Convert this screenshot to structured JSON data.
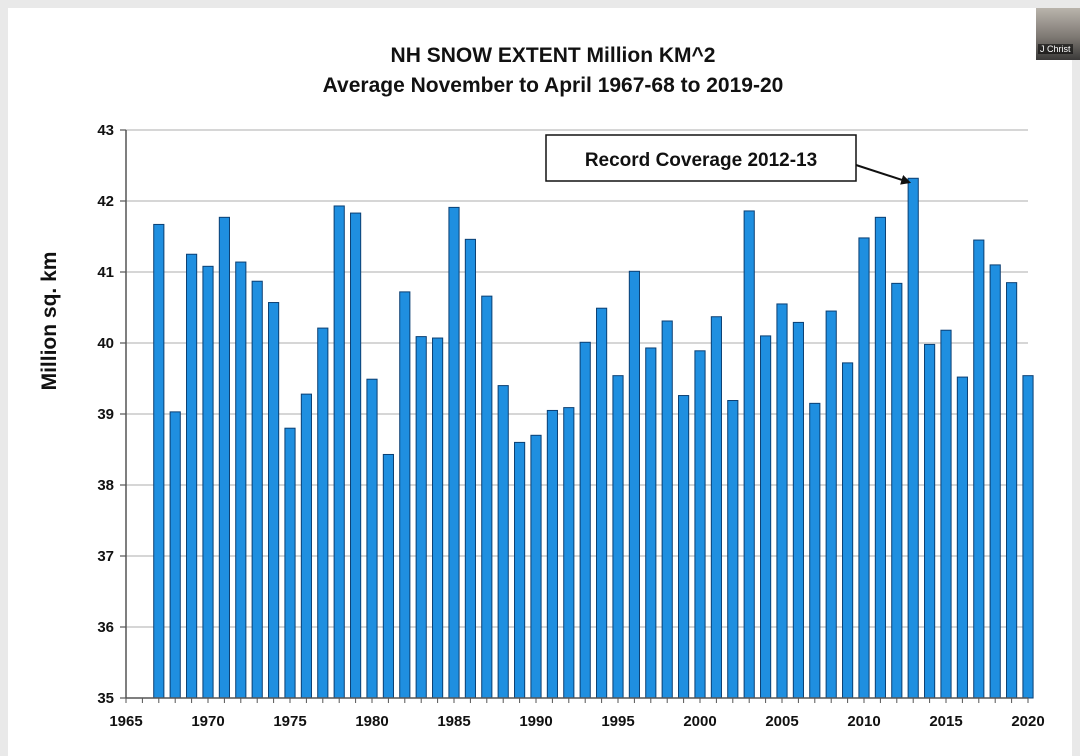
{
  "chart_data": {
    "type": "bar",
    "title": "NH SNOW EXTENT Million KM^2",
    "subtitle": "Average November to April 1967-68 to 2019-20",
    "xlabel": "",
    "ylabel": "Million sq. km",
    "xlim": [
      1965,
      2020
    ],
    "ylim": [
      35,
      43
    ],
    "grid": true,
    "x_ticks": [
      1965,
      1970,
      1975,
      1980,
      1985,
      1990,
      1995,
      2000,
      2005,
      2010,
      2015,
      2020
    ],
    "y_ticks": [
      35,
      36,
      37,
      38,
      39,
      40,
      41,
      42,
      43
    ],
    "bar_color": "#1f8fe0",
    "x": [
      1967,
      1968,
      1969,
      1970,
      1971,
      1972,
      1973,
      1974,
      1975,
      1976,
      1977,
      1978,
      1979,
      1980,
      1981,
      1982,
      1983,
      1984,
      1985,
      1986,
      1987,
      1988,
      1989,
      1990,
      1991,
      1992,
      1993,
      1994,
      1995,
      1996,
      1997,
      1998,
      1999,
      2000,
      2001,
      2002,
      2003,
      2004,
      2005,
      2006,
      2007,
      2008,
      2009,
      2010,
      2011,
      2012,
      2013,
      2014,
      2015,
      2016,
      2017,
      2018,
      2019,
      2020
    ],
    "values": [
      41.67,
      39.03,
      41.25,
      41.08,
      41.77,
      41.14,
      40.87,
      40.57,
      38.8,
      39.28,
      40.21,
      41.93,
      41.83,
      39.49,
      38.43,
      40.72,
      40.09,
      40.07,
      41.91,
      41.46,
      40.66,
      39.4,
      38.6,
      38.7,
      39.05,
      39.09,
      40.01,
      40.49,
      39.54,
      41.01,
      39.93,
      40.31,
      39.26,
      39.89,
      40.37,
      39.19,
      41.86,
      40.1,
      40.55,
      40.29,
      39.15,
      40.45,
      39.72,
      41.48,
      41.77,
      40.84,
      42.32,
      39.98,
      40.18,
      39.52,
      41.45,
      41.1,
      40.85,
      39.54
    ]
  },
  "annotation": {
    "text": "Record Coverage 2012-13",
    "target_x": 2013,
    "target_y": 42.32
  },
  "video_thumbnail": {
    "label": "J Christ"
  }
}
